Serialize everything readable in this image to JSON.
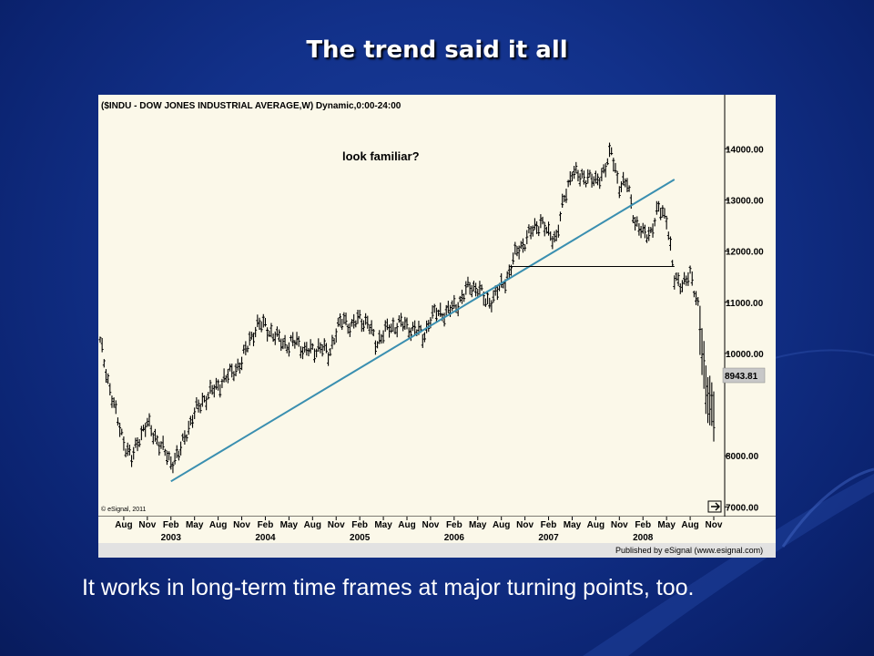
{
  "slide": {
    "title": "The trend said it all",
    "caption": "It works in long-term time frames at major turning points, too."
  },
  "colors": {
    "background": "#12318a",
    "chart_background": "#fbf8e9",
    "price_bars": "#000000",
    "trendline": "#3a8fb0"
  },
  "chart_data": {
    "type": "bar",
    "style": "ohlc-weekly",
    "header": "($INDU - DOW JONES INDUSTRIAL AVERAGE,W) Dynamic,0:00-24:00",
    "annotation": "look familiar?",
    "copyright": "© eSignal, 2011",
    "footer": "Published by eSignal (www.esignal.com)",
    "last_price_label": "8943.81",
    "y_ticks": [
      7000,
      8000,
      10000,
      11000,
      12000,
      13000,
      14000
    ],
    "y_tick_labels": [
      "7000.00",
      "8000.00",
      "10000.00",
      "11000.00",
      "12000.00",
      "13000.00",
      "14000.00"
    ],
    "ylim": [
      6900,
      14700
    ],
    "x_month_labels": [
      "Aug",
      "Nov",
      "Feb",
      "May",
      "Aug",
      "Nov",
      "Feb",
      "May",
      "Aug",
      "Nov",
      "Feb",
      "May",
      "Aug",
      "Nov",
      "Feb",
      "May",
      "Aug",
      "Nov",
      "Feb",
      "May",
      "Aug",
      "Nov",
      "Feb",
      "May",
      "Aug",
      "Nov"
    ],
    "x_year_labels": [
      "2003",
      "2004",
      "2005",
      "2006",
      "2007",
      "2008"
    ],
    "x_year_month_index": [
      2,
      6,
      10,
      14,
      18,
      22
    ],
    "series": [
      {
        "x": [
          "2002-05",
          "2002-06",
          "2002-07",
          "2002-08",
          "2002-09",
          "2002-10",
          "2002-11",
          "2002-12",
          "2003-01",
          "2003-02",
          "2003-03",
          "2003-04",
          "2003-05",
          "2003-06",
          "2003-07",
          "2003-08",
          "2003-09",
          "2003-10",
          "2003-11",
          "2003-12",
          "2004-01",
          "2004-02",
          "2004-03",
          "2004-04",
          "2004-05",
          "2004-06",
          "2004-07",
          "2004-08",
          "2004-09",
          "2004-10",
          "2004-11",
          "2004-12",
          "2005-01",
          "2005-02",
          "2005-03",
          "2005-04",
          "2005-05",
          "2005-06",
          "2005-07",
          "2005-08",
          "2005-09",
          "2005-10",
          "2005-11",
          "2005-12",
          "2006-01",
          "2006-02",
          "2006-03",
          "2006-04",
          "2006-05",
          "2006-06",
          "2006-07",
          "2006-08",
          "2006-09",
          "2006-10",
          "2006-11",
          "2006-12",
          "2007-01",
          "2007-02",
          "2007-03",
          "2007-04",
          "2007-05",
          "2007-06",
          "2007-07",
          "2007-08",
          "2007-09",
          "2007-10",
          "2007-11",
          "2007-12",
          "2008-01",
          "2008-02",
          "2008-03",
          "2008-04",
          "2008-05",
          "2008-06",
          "2008-07",
          "2008-08",
          "2008-09",
          "2008-10",
          "2008-11"
        ],
        "values": [
          10200,
          9500,
          8800,
          8300,
          7900,
          8400,
          8600,
          8400,
          8100,
          7900,
          8000,
          8500,
          8800,
          9100,
          9200,
          9400,
          9500,
          9700,
          9800,
          10300,
          10500,
          10600,
          10300,
          10300,
          10100,
          10300,
          10000,
          10100,
          10100,
          10000,
          10400,
          10700,
          10500,
          10700,
          10600,
          10200,
          10400,
          10500,
          10600,
          10500,
          10500,
          10300,
          10700,
          10800,
          10800,
          10900,
          11100,
          11300,
          11300,
          11000,
          11100,
          11300,
          11600,
          12000,
          12200,
          12400,
          12600,
          12300,
          12300,
          13000,
          13600,
          13400,
          13500,
          13300,
          13600,
          13900,
          13300,
          13300,
          12600,
          12300,
          12400,
          12800,
          12700,
          11400,
          11400,
          11500,
          11000,
          9200,
          8900
        ]
      }
    ],
    "trendlines": [
      {
        "from": [
          "2003-02",
          7500
        ],
        "to": [
          "2008-06",
          13400
        ]
      },
      {
        "from": [
          "2006-09",
          11700
        ],
        "to": [
          "2008-06",
          11700
        ]
      }
    ]
  }
}
